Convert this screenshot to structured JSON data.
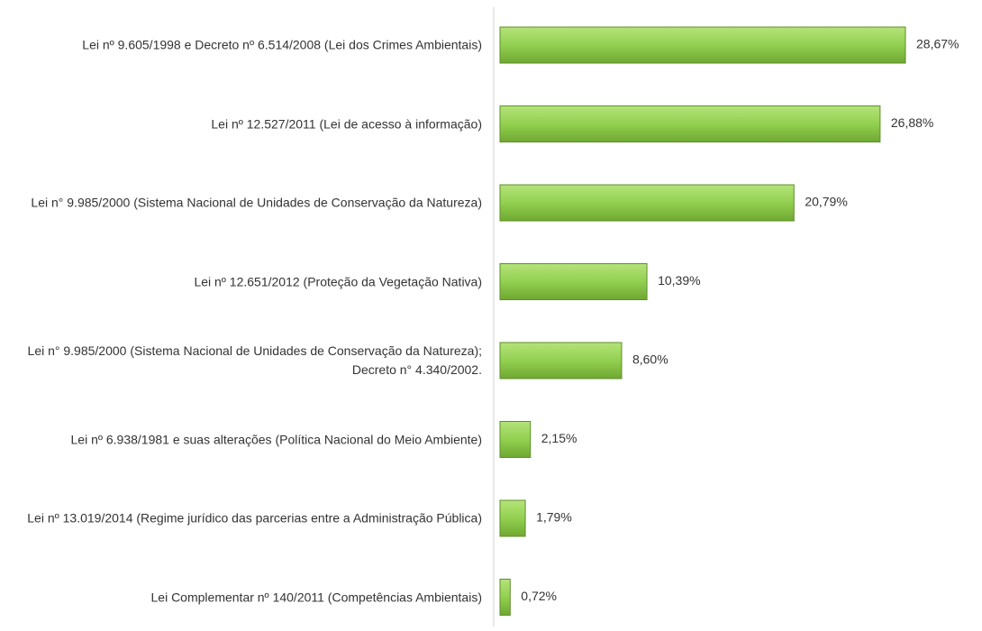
{
  "chart_data": {
    "type": "bar",
    "orientation": "horizontal",
    "categories": [
      "Lei nº 9.605/1998 e Decreto nº 6.514/2008 (Lei dos Crimes Ambientais)",
      "Lei nº 12.527/2011 (Lei de acesso à informação)",
      "Lei n° 9.985/2000 (Sistema Nacional de Unidades de Conservação da Natureza)",
      "Lei nº 12.651/2012 (Proteção da Vegetação Nativa)",
      "Lei n° 9.985/2000 (Sistema Nacional de Unidades de Conservação da Natureza); Decreto n° 4.340/2002.",
      "Lei nº 6.938/1981 e suas alterações (Política Nacional do Meio Ambiente)",
      "Lei nº 13.019/2014 (Regime jurídico das parcerias entre a Administração Pública)",
      "Lei Complementar nº 140/2011 (Competências Ambientais)"
    ],
    "values": [
      28.67,
      26.88,
      20.79,
      10.39,
      8.6,
      2.15,
      1.79,
      0.72
    ],
    "value_labels": [
      "28,67%",
      "26,88%",
      "20,79%",
      "10,39%",
      "8,60%",
      "2,15%",
      "1,79%",
      "0,72%"
    ],
    "color": "#92d050"
  }
}
